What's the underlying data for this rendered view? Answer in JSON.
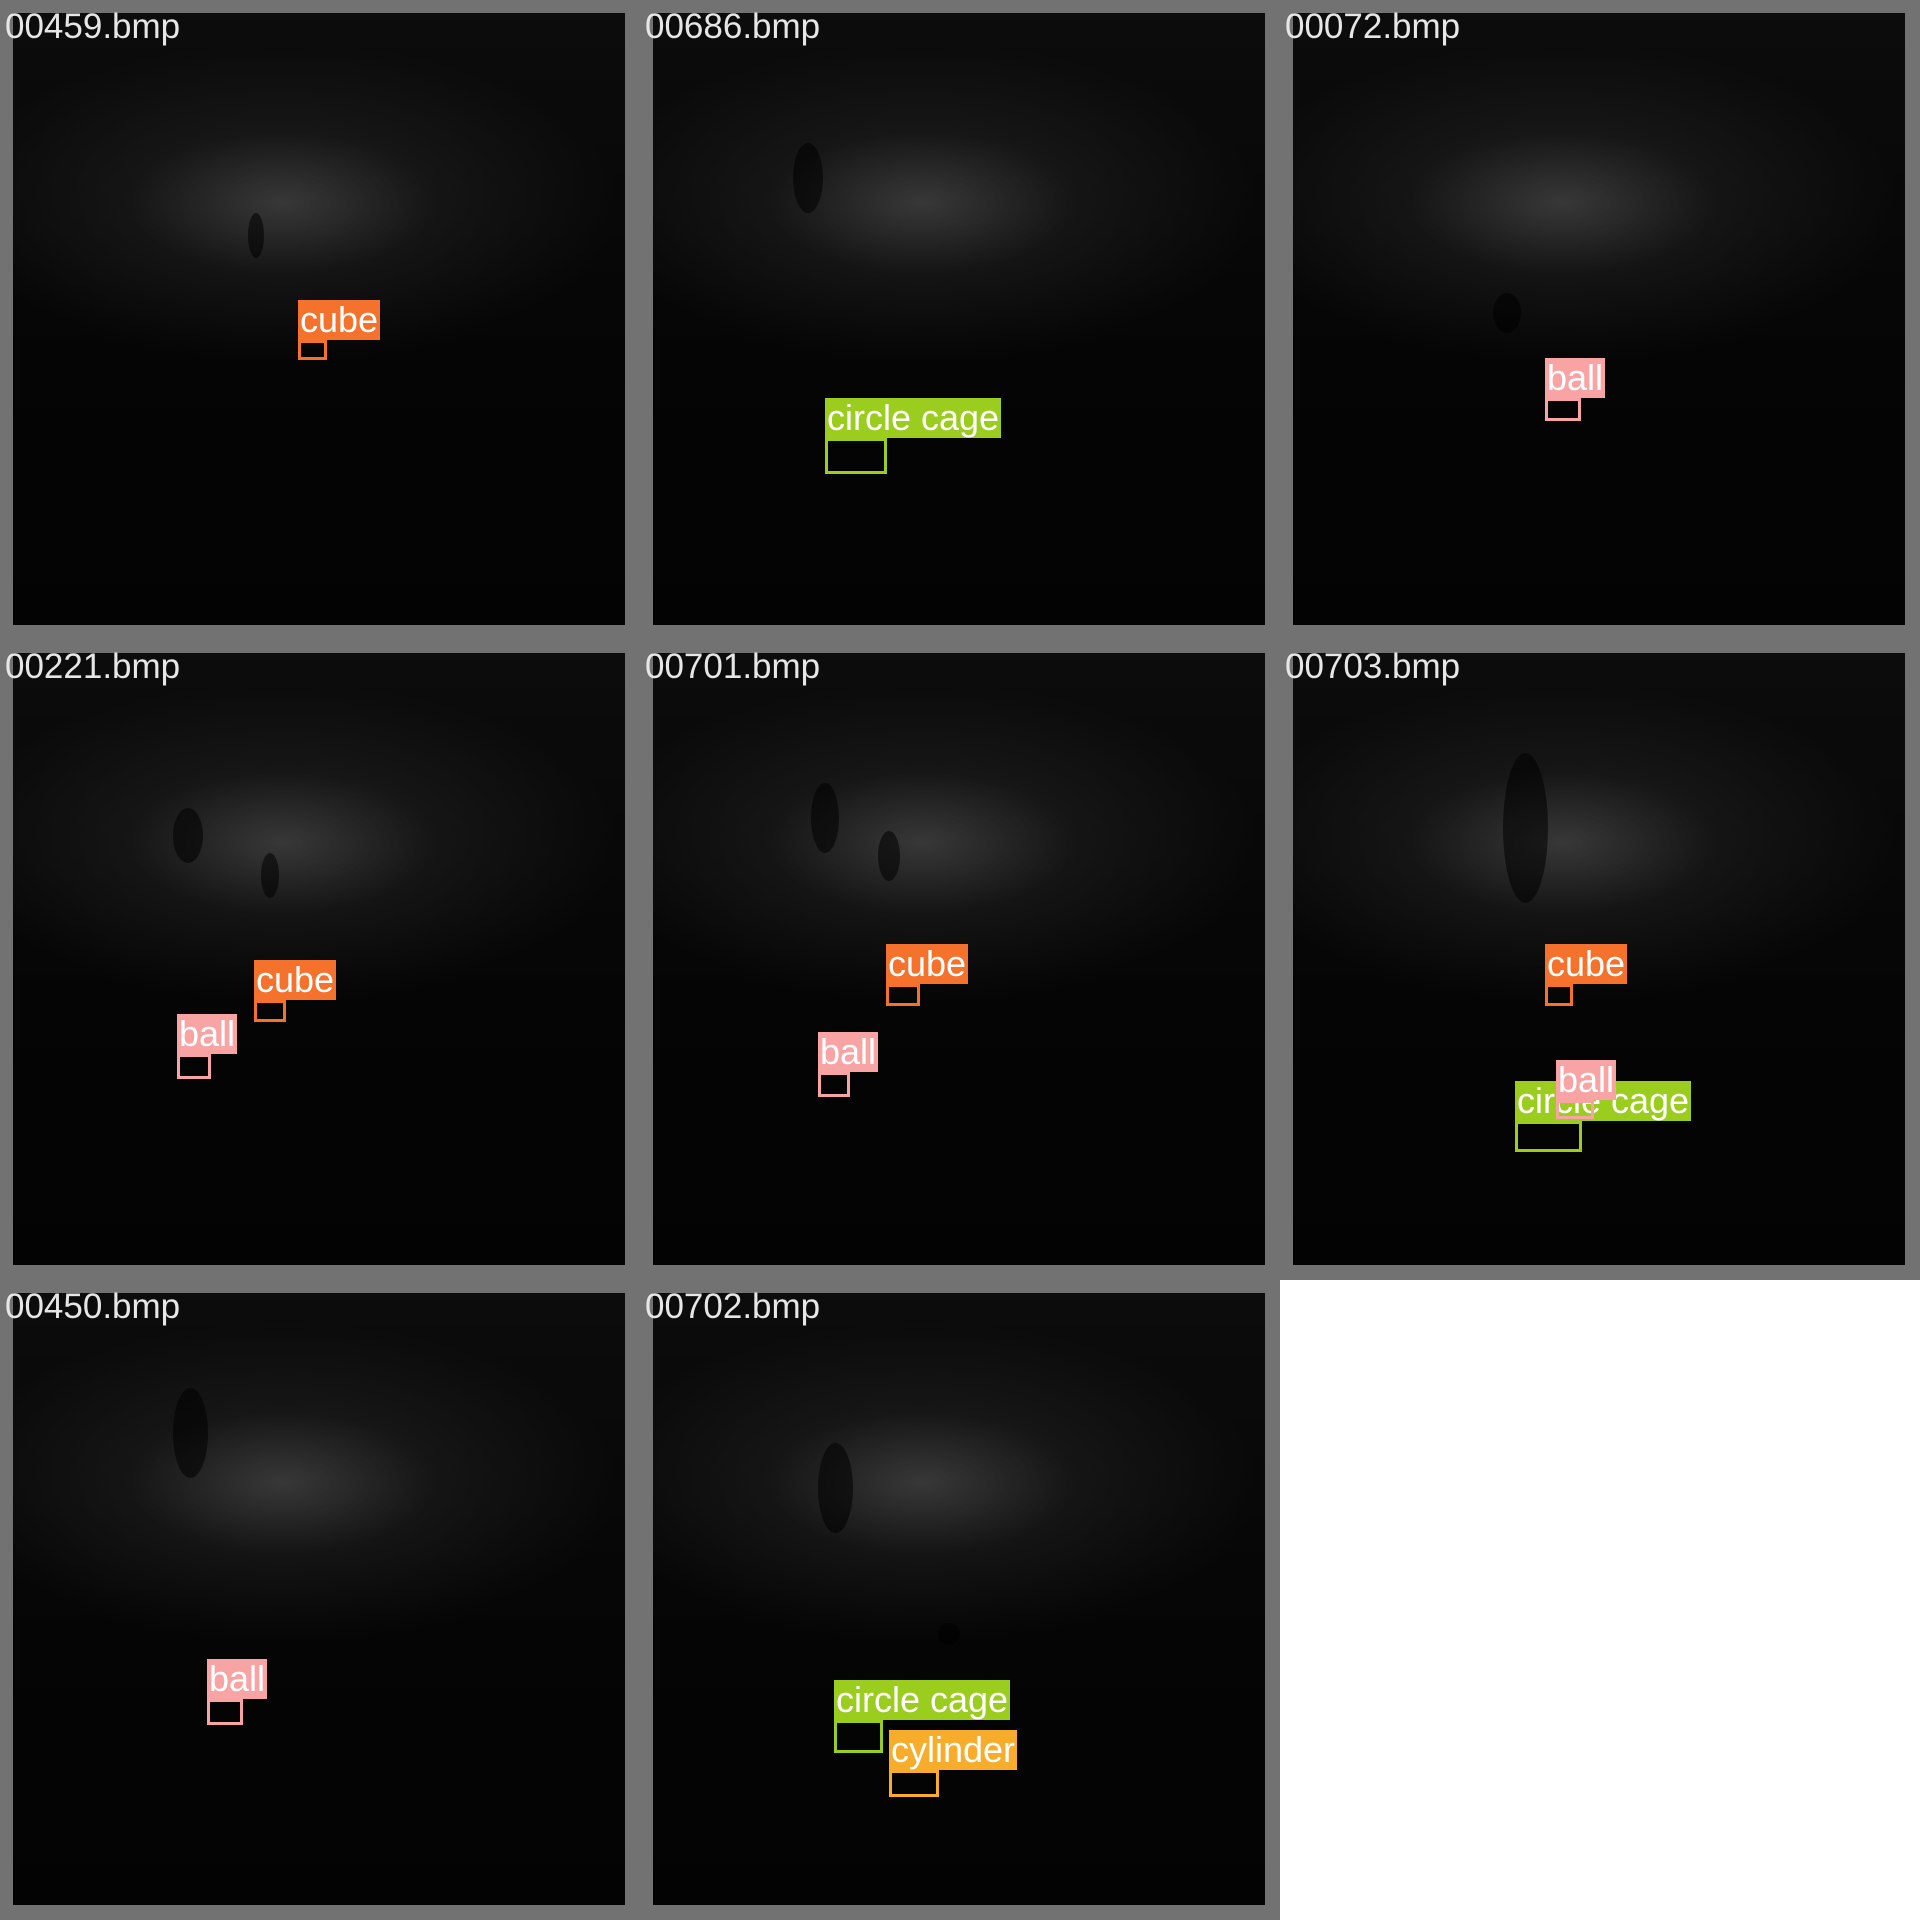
{
  "class_colors": {
    "cube": "#f4722c",
    "circle cage": "#9acd1e",
    "ball": "#f8a4a4",
    "cylinder": "#f7ad2b"
  },
  "frame_color": "#727272",
  "tiles": [
    {
      "file": "00459.bmp",
      "detections": [
        {
          "label": "cube"
        }
      ]
    },
    {
      "file": "00686.bmp",
      "detections": [
        {
          "label": "circle cage"
        }
      ]
    },
    {
      "file": "00072.bmp",
      "detections": [
        {
          "label": "ball"
        }
      ]
    },
    {
      "file": "00221.bmp",
      "detections": [
        {
          "label": "cube"
        },
        {
          "label": "ball"
        }
      ]
    },
    {
      "file": "00701.bmp",
      "detections": [
        {
          "label": "cube"
        },
        {
          "label": "ball"
        }
      ]
    },
    {
      "file": "00703.bmp",
      "detections": [
        {
          "label": "cube"
        },
        {
          "label": "circle cage"
        },
        {
          "label": "ball"
        }
      ]
    },
    {
      "file": "00450.bmp",
      "detections": [
        {
          "label": "ball"
        }
      ]
    },
    {
      "file": "00702.bmp",
      "detections": [
        {
          "label": "circle cage"
        },
        {
          "label": "cylinder"
        }
      ]
    }
  ]
}
